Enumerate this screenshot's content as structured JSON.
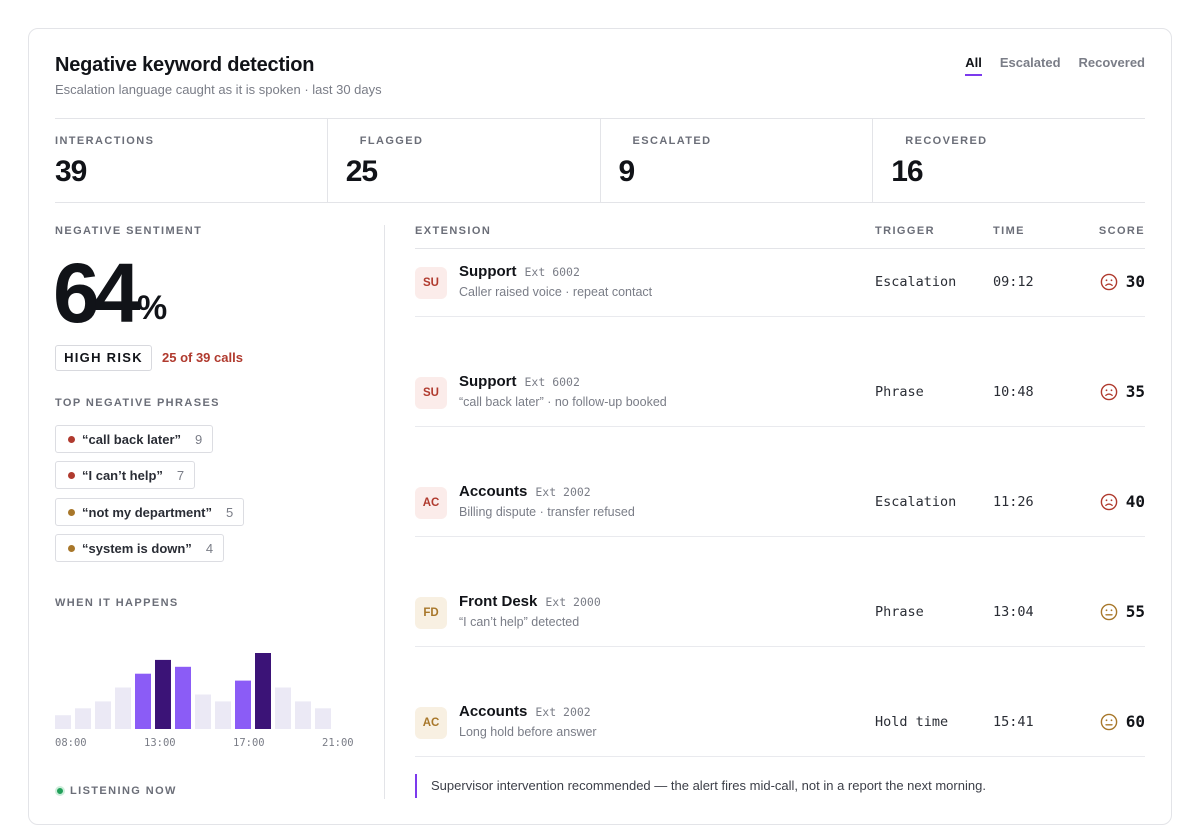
{
  "header": {
    "title": "Negative keyword detection",
    "subtitle": "Escalation language caught as it is spoken · last 30 days",
    "tabs": [
      {
        "label": "All",
        "active": true
      },
      {
        "label": "Escalated",
        "active": false
      },
      {
        "label": "Recovered",
        "active": false
      }
    ]
  },
  "stats": [
    {
      "label": "INTERACTIONS",
      "value": "39"
    },
    {
      "label": "FLAGGED",
      "value": "25"
    },
    {
      "label": "ESCALATED",
      "value": "9"
    },
    {
      "label": "RECOVERED",
      "value": "16"
    }
  ],
  "sentiment": {
    "label": "NEGATIVE SENTIMENT",
    "value": "64",
    "unit": "%",
    "risk_label": "HIGH RISK",
    "risk_note": "25 of 39 calls"
  },
  "phrases": {
    "label": "TOP NEGATIVE PHRASES",
    "items": [
      {
        "text": "“call back later”",
        "count": "9",
        "color": "#b03a2e"
      },
      {
        "text": "“I can’t help”",
        "count": "7",
        "color": "#b03a2e"
      },
      {
        "text": "“not my department”",
        "count": "5",
        "color": "#a8772a"
      },
      {
        "text": "“system is down”",
        "count": "4",
        "color": "#a8772a"
      }
    ]
  },
  "timing": {
    "label": "WHEN IT HAPPENS",
    "ticks": [
      "08:00",
      "13:00",
      "17:00",
      "21:00"
    ]
  },
  "chart_data": {
    "type": "bar",
    "categories": [
      "",
      "",
      "",
      "",
      "",
      "",
      "",
      "",
      "",
      "",
      "",
      "",
      "",
      "",
      ""
    ],
    "values": [
      2,
      3,
      4,
      6,
      8,
      10,
      9,
      5,
      4,
      7,
      11,
      6,
      4,
      3,
      0
    ],
    "levels": [
      "low",
      "low",
      "low",
      "low",
      "mid",
      "high",
      "mid",
      "low",
      "low",
      "mid",
      "high",
      "low",
      "low",
      "low",
      "low"
    ],
    "colors": {
      "low": "#ebe9f5",
      "mid": "#8b5cf6",
      "high": "#3b1377"
    },
    "xlabel": "",
    "ylabel": "",
    "grid": false
  },
  "status": {
    "listening": "LISTENING NOW"
  },
  "table": {
    "headers": {
      "extension": "EXTENSION",
      "trigger": "TRIGGER",
      "time": "TIME",
      "score": "SCORE"
    },
    "rows": [
      {
        "initials": "SU",
        "name": "Support",
        "ext": "Ext 6002",
        "desc": "Caller raised voice · repeat contact",
        "trigger": "Escalation",
        "time": "09:12",
        "score": "30",
        "tone": "red"
      },
      {
        "initials": "SU",
        "name": "Support",
        "ext": "Ext 6002",
        "desc": "“call back later” · no follow-up booked",
        "trigger": "Phrase",
        "time": "10:48",
        "score": "35",
        "tone": "red"
      },
      {
        "initials": "AC",
        "name": "Accounts",
        "ext": "Ext 2002",
        "desc": "Billing dispute · transfer refused",
        "trigger": "Escalation",
        "time": "11:26",
        "score": "40",
        "tone": "red"
      },
      {
        "initials": "FD",
        "name": "Front Desk",
        "ext": "Ext 2000",
        "desc": "“I can’t help” detected",
        "trigger": "Phrase",
        "time": "13:04",
        "score": "55",
        "tone": "amber"
      },
      {
        "initials": "AC",
        "name": "Accounts",
        "ext": "Ext 2002",
        "desc": "Long hold before answer",
        "trigger": "Hold time",
        "time": "15:41",
        "score": "60",
        "tone": "amber"
      }
    ]
  },
  "note": "Supervisor intervention recommended — the alert fires mid-call, not in a report the next morning.",
  "palette": {
    "accent": "#7c3aed",
    "red": "#b03a2e",
    "red_bg": "#fbecea",
    "amber": "#a8772a",
    "amber_bg": "#f8f0e2"
  }
}
